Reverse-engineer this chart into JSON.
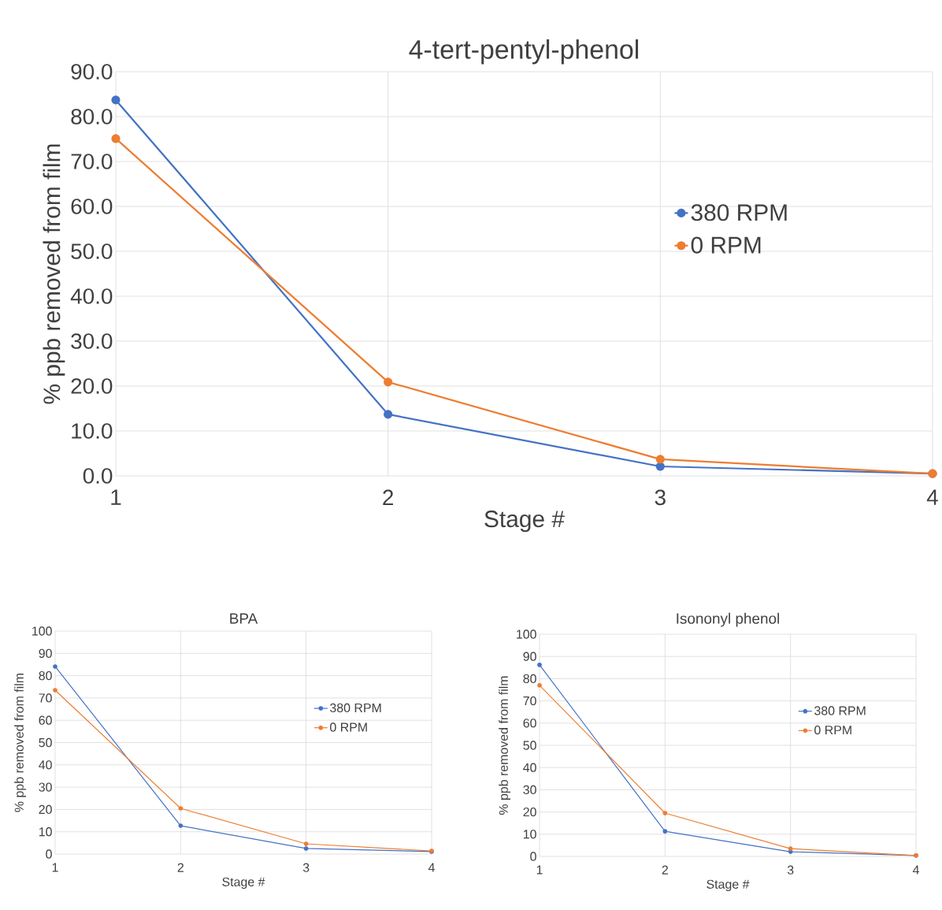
{
  "chart_data": [
    {
      "type": "line",
      "title": "4-tert-pentyl-phenol",
      "xlabel": "Stage #",
      "ylabel": "% ppb removed from film",
      "x": [
        1,
        2,
        3,
        4
      ],
      "xlim": [
        1,
        4
      ],
      "xticks": [
        1,
        2,
        3,
        4
      ],
      "ylim": [
        0,
        90
      ],
      "yticks": [
        {
          "value": 0,
          "label": "0.0"
        },
        {
          "value": 10,
          "label": "10.0"
        },
        {
          "value": 20,
          "label": "20.0"
        },
        {
          "value": 30,
          "label": "30.0"
        },
        {
          "value": 40,
          "label": "40.0"
        },
        {
          "value": 50,
          "label": "50.0"
        },
        {
          "value": 60,
          "label": "60.0"
        },
        {
          "value": 70,
          "label": "70.0"
        },
        {
          "value": 80,
          "label": "80.0"
        },
        {
          "value": 90,
          "label": "90.0"
        }
      ],
      "grid": true,
      "legend": "right",
      "marker": "circle",
      "series": [
        {
          "name": "380 RPM",
          "color": "#4472c4",
          "values": [
            83.7,
            13.7,
            2.1,
            0.5
          ]
        },
        {
          "name": "0 RPM",
          "color": "#ed7d31",
          "values": [
            75.1,
            20.9,
            3.7,
            0.5
          ]
        }
      ]
    },
    {
      "type": "line",
      "title": "BPA",
      "xlabel": "Stage #",
      "ylabel": "% ppb removed from film",
      "x": [
        1,
        2,
        3,
        4
      ],
      "xlim": [
        1,
        4
      ],
      "xticks": [
        1,
        2,
        3,
        4
      ],
      "ylim": [
        0,
        100
      ],
      "yticks": [
        0,
        10,
        20,
        30,
        40,
        50,
        60,
        70,
        80,
        90,
        100
      ],
      "grid": true,
      "legend": "right",
      "marker": "circle",
      "series": [
        {
          "name": "380 RPM",
          "color": "#4472c4",
          "values": [
            84.1,
            12.7,
            2.5,
            1.1
          ]
        },
        {
          "name": "0 RPM",
          "color": "#ed7d31",
          "values": [
            73.5,
            20.5,
            4.6,
            1.4
          ]
        }
      ]
    },
    {
      "type": "line",
      "title": "Isononyl phenol",
      "xlabel": "Stage #",
      "ylabel": "% ppb removed from film",
      "x": [
        1,
        2,
        3,
        4
      ],
      "xlim": [
        1,
        4
      ],
      "xticks": [
        1,
        2,
        3,
        4
      ],
      "ylim": [
        0,
        100
      ],
      "yticks": [
        0,
        10,
        20,
        30,
        40,
        50,
        60,
        70,
        80,
        90,
        100
      ],
      "grid": true,
      "legend": "right",
      "marker": "circle",
      "series": [
        {
          "name": "380 RPM",
          "color": "#4472c4",
          "values": [
            86.2,
            11.3,
            2.1,
            0.4
          ]
        },
        {
          "name": "0 RPM",
          "color": "#ed7d31",
          "values": [
            77.0,
            19.5,
            3.5,
            0.4
          ]
        }
      ]
    }
  ]
}
